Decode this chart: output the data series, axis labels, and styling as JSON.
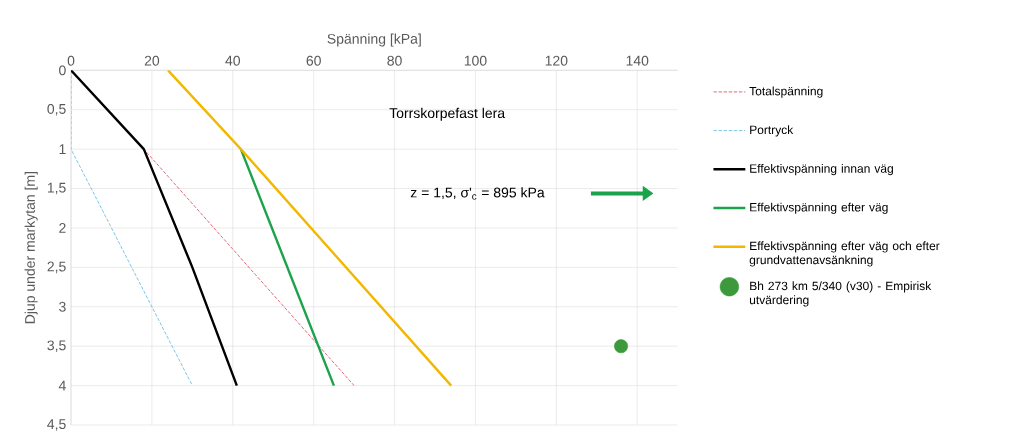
{
  "chart_data": {
    "type": "line",
    "xlabel": "Spänning [kPa]",
    "ylabel": "Djup under markytan [m]",
    "xlim": [
      0,
      150
    ],
    "xticks": [
      0,
      20,
      40,
      60,
      80,
      100,
      120,
      140
    ],
    "ylim": [
      4.5,
      0
    ],
    "yticks": [
      0,
      {
        "value": 0.5,
        "label": "0,5"
      },
      1,
      {
        "value": 1.5,
        "label": "1,5"
      },
      2,
      {
        "value": 2.5,
        "label": "2,5"
      },
      3,
      {
        "value": 3.5,
        "label": "3,5"
      },
      4,
      {
        "value": 4.5,
        "label": "4,5"
      }
    ],
    "grid": true,
    "legend": "right",
    "marker": "none",
    "annotations": [
      "Torrskorpefast lera",
      "z = 1,5, σ'$_{c}$ = 895 kPa"
    ],
    "series": [
      {
        "name": "Totalspänning",
        "color": "#d9485a",
        "line_style": "dashed",
        "x": [
          0,
          18,
          70
        ],
        "values": [
          0,
          1,
          4
        ]
      },
      {
        "name": "Portryck",
        "color": "#5bb8e0",
        "line_style": "dashed",
        "x": [
          0,
          0,
          30
        ],
        "values": [
          0,
          1,
          4
        ]
      },
      {
        "name": "Effektivspänning innan väg",
        "color": "#000000",
        "line_style": "solid",
        "x": [
          0,
          18,
          30,
          41
        ],
        "values": [
          0,
          1,
          2.5,
          4
        ]
      },
      {
        "name": "Effektivspänning efter väg",
        "color": "#1aa34a",
        "line_style": "solid",
        "x": [
          42,
          65
        ],
        "values": [
          1,
          4
        ]
      },
      {
        "name": "Effektivspänning efter väg och efter grundvattenavsänkning",
        "color": "#f2b800",
        "line_style": "solid",
        "x": [
          24,
          42,
          94
        ],
        "values": [
          0,
          1,
          4
        ]
      },
      {
        "name": "Bh 273 km 5/340 (v30) - Empirisk utvärdering",
        "type": "scatter",
        "marker": "circle",
        "color": "#3c9a3c",
        "x": [
          136
        ],
        "values": [
          3.5
        ]
      }
    ]
  }
}
